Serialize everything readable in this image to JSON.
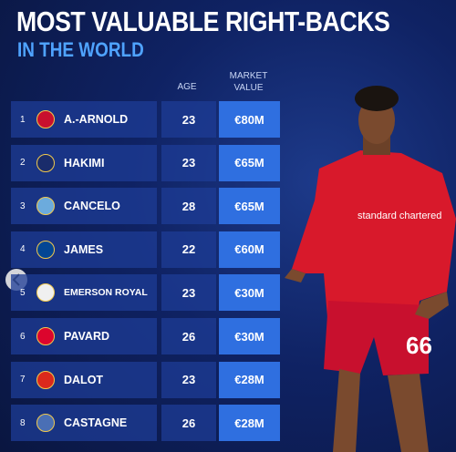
{
  "header": {
    "title": "MOST VALUABLE RIGHT-BACKS",
    "subtitle": "IN THE WORLD"
  },
  "table": {
    "columns": {
      "age": "AGE",
      "value": "MARKET VALUE"
    },
    "rows": [
      {
        "rank": "1",
        "name": "A.-ARNOLD",
        "age": "23",
        "value": "€80M"
      },
      {
        "rank": "2",
        "name": "HAKIMI",
        "age": "23",
        "value": "€65M"
      },
      {
        "rank": "3",
        "name": "CANCELO",
        "age": "28",
        "value": "€65M"
      },
      {
        "rank": "4",
        "name": "JAMES",
        "age": "22",
        "value": "€60M"
      },
      {
        "rank": "5",
        "name": "EMERSON ROYAL",
        "age": "23",
        "value": "€30M"
      },
      {
        "rank": "6",
        "name": "PAVARD",
        "age": "26",
        "value": "€30M"
      },
      {
        "rank": "7",
        "name": "DALOT",
        "age": "23",
        "value": "€28M"
      },
      {
        "rank": "8",
        "name": "CASTAGNE",
        "age": "26",
        "value": "€28M"
      }
    ]
  },
  "player_shirt": {
    "sponsor": "standard chartered",
    "number": "66"
  }
}
